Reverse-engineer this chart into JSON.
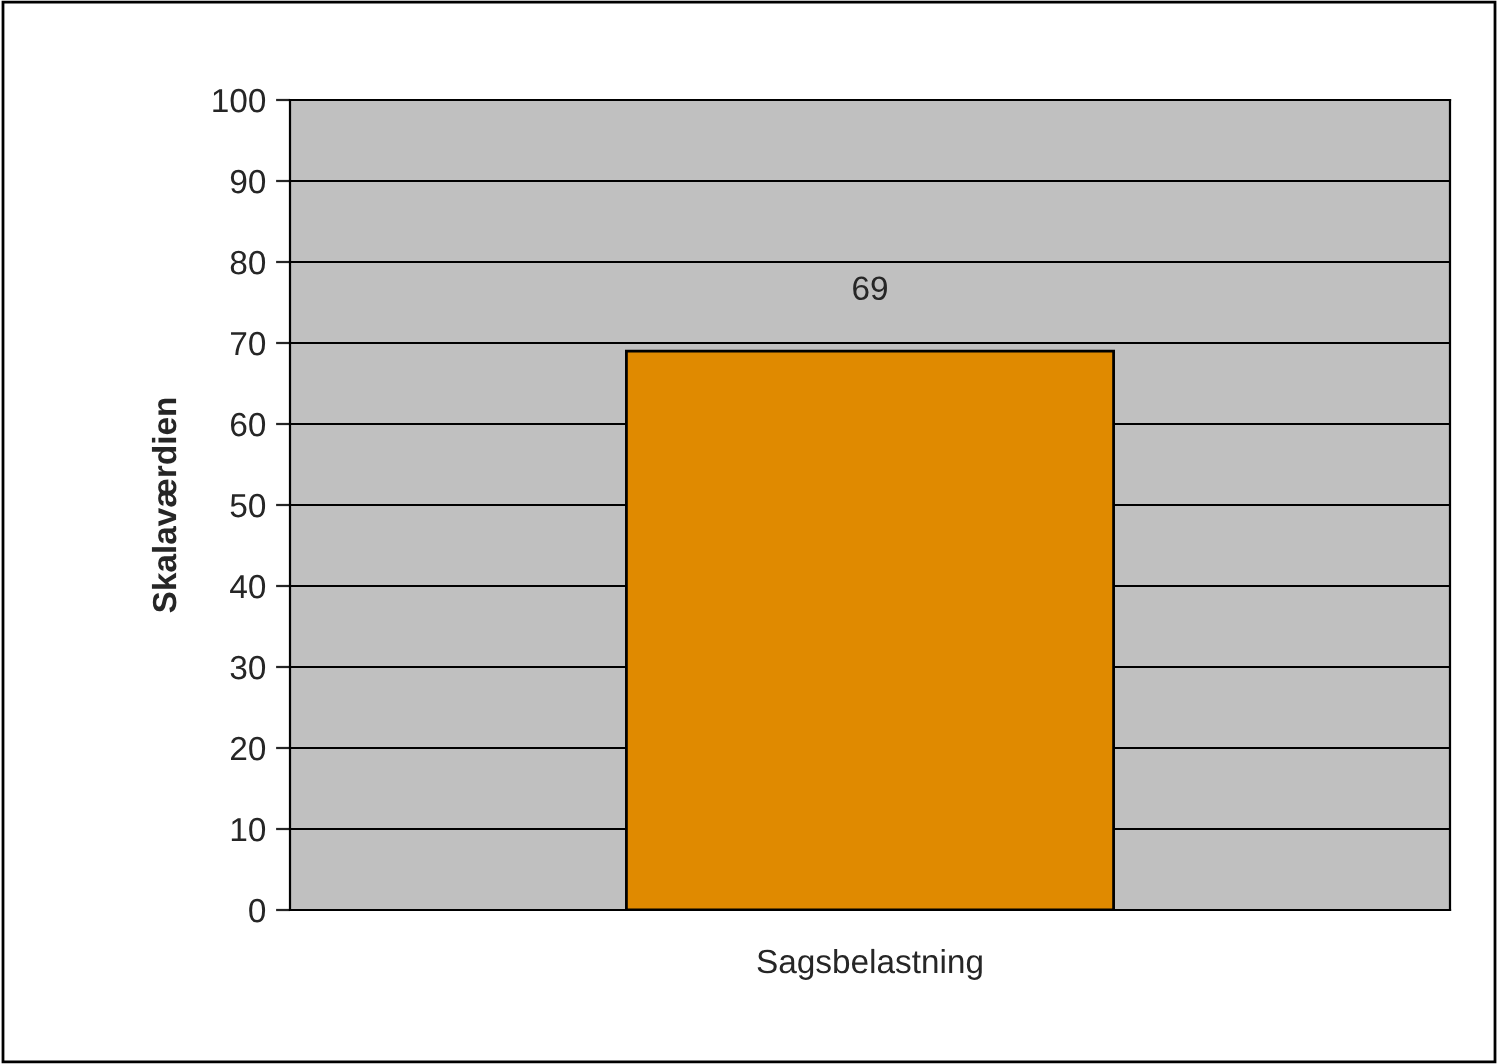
{
  "chart_data": {
    "type": "bar",
    "ylabel": "Skalaværdien",
    "categories": [
      "Sagsbelastning"
    ],
    "values": [
      69
    ],
    "color": "#e08a00",
    "ylim": [
      0,
      100
    ],
    "yticks": [
      0,
      10,
      20,
      30,
      40,
      50,
      60,
      70,
      80,
      90,
      100
    ],
    "grid": "y",
    "data_labels": true,
    "legend": false
  }
}
